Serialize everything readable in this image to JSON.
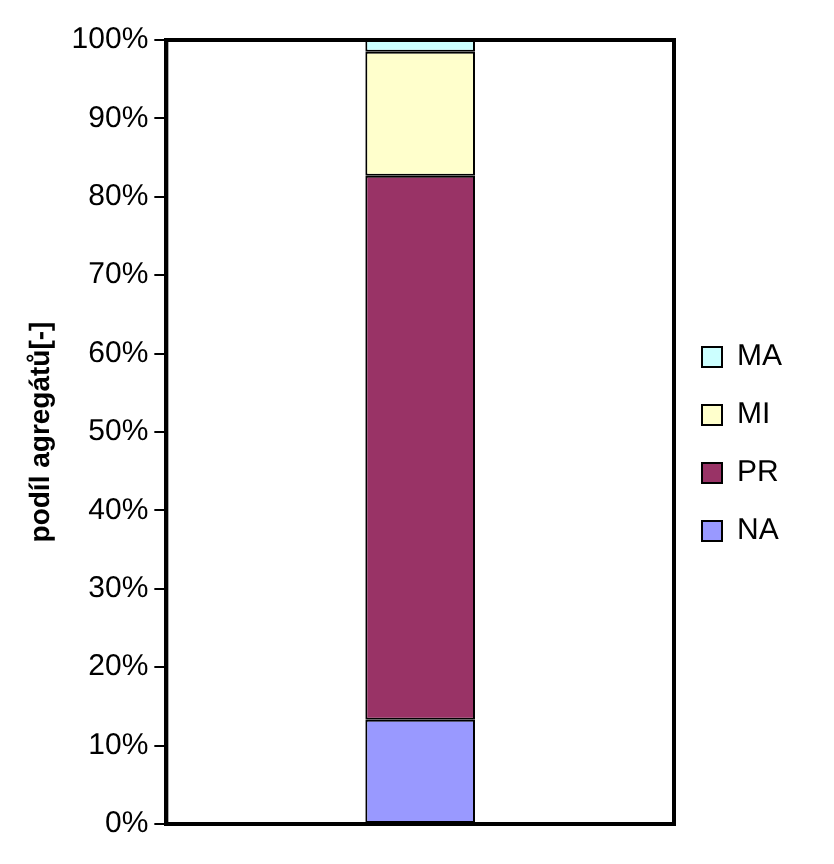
{
  "chart_data": {
    "type": "bar",
    "stacked": true,
    "ylabel": "podíl agregátů[-]",
    "categories": [
      null
    ],
    "series": [
      {
        "name": "NA",
        "color": "#9999ff",
        "values": [
          13.3
        ]
      },
      {
        "name": "PR",
        "color": "#993366",
        "values": [
          69.4
        ]
      },
      {
        "name": "MI",
        "color": "#ffffcc",
        "values": [
          15.8
        ]
      },
      {
        "name": "MA",
        "color": "#ccffff",
        "values": [
          1.5
        ]
      }
    ],
    "ylim": [
      0,
      100
    ],
    "yticks": [
      {
        "value": 0,
        "label": "0%"
      },
      {
        "value": 10,
        "label": "10%"
      },
      {
        "value": 20,
        "label": "20%"
      },
      {
        "value": 30,
        "label": "30%"
      },
      {
        "value": 40,
        "label": "40%"
      },
      {
        "value": 50,
        "label": "50%"
      },
      {
        "value": 60,
        "label": "60%"
      },
      {
        "value": 70,
        "label": "70%"
      },
      {
        "value": 80,
        "label": "80%"
      },
      {
        "value": 90,
        "label": "90%"
      },
      {
        "value": 100,
        "label": "100%"
      }
    ],
    "grid": false,
    "legend": "right"
  }
}
